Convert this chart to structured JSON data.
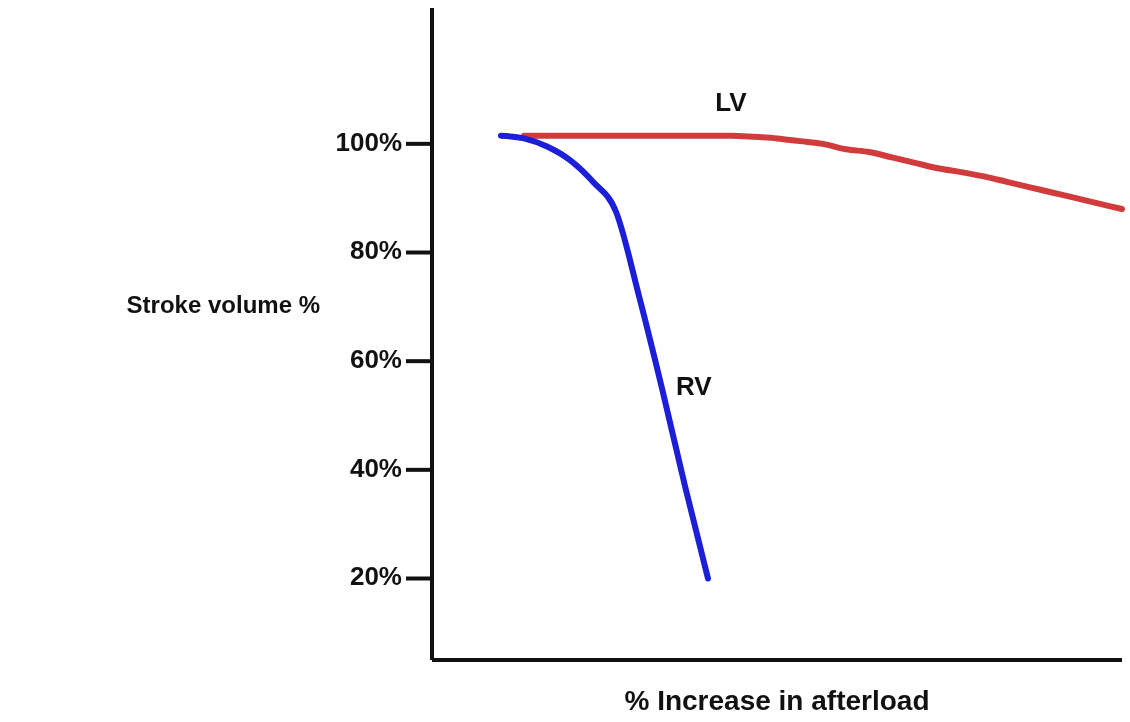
{
  "chart_data": {
    "type": "line",
    "xlabel": "% Increase in afterload",
    "ylabel": "Stroke volume %",
    "categories": [
      null,
      null,
      null,
      null,
      null,
      null,
      null,
      null,
      null,
      null,
      null,
      null,
      null,
      null,
      null,
      null,
      null,
      null,
      null,
      null,
      null,
      null,
      null,
      null,
      null,
      null,
      null,
      null,
      null,
      null,
      null
    ],
    "series": [
      {
        "name": "LV",
        "color": "#d13b3b",
        "values": [
          null,
          null,
          null,
          null,
          101.5,
          101.5,
          101.5,
          101.5,
          101.5,
          101.5,
          101.5,
          101.5,
          101.5,
          101.5,
          101.3,
          101,
          100.5,
          100,
          99,
          98.5,
          97.5,
          96.5,
          95.5,
          94.8,
          94,
          93,
          92,
          91,
          90,
          89,
          88
        ]
      },
      {
        "name": "RV",
        "color": "#1c1ed8",
        "values": [
          null,
          null,
          null,
          101.5,
          101,
          99.5,
          97,
          93,
          87.5,
          72,
          55,
          37,
          20,
          null,
          null,
          null,
          null,
          null,
          null,
          null,
          null,
          null,
          null,
          null,
          null,
          null,
          null,
          null,
          null,
          null,
          null
        ]
      }
    ],
    "ylim": [
      5,
      125
    ],
    "yticks": [
      {
        "value": 20,
        "label": "20%"
      },
      {
        "value": 40,
        "label": "40%"
      },
      {
        "value": 60,
        "label": "60%"
      },
      {
        "value": 80,
        "label": "80%"
      },
      {
        "value": 100,
        "label": "100%"
      }
    ],
    "grid": false,
    "legend": false,
    "marker": "none",
    "line_style": "solid"
  }
}
